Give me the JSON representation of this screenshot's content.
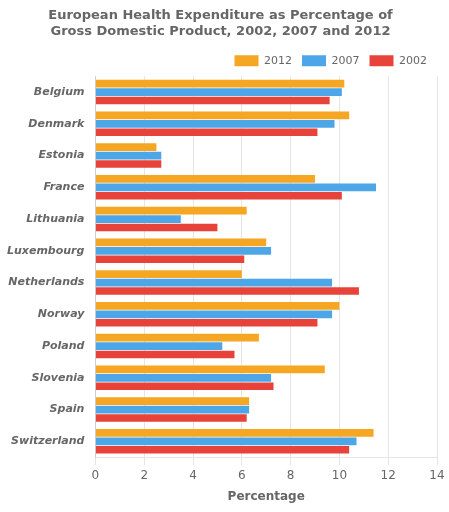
{
  "chart_data": {
    "type": "bar",
    "orientation": "horizontal",
    "title": "European Health Expenditure as Percentage of\nGross Domestic Product, 2002, 2007 and 2012",
    "categories": [
      "Belgium",
      "Denmark",
      "Estonia",
      "France",
      "Lithuania",
      "Luxembourg",
      "Netherlands",
      "Norway",
      "Poland",
      "Slovenia",
      "Spain",
      "Switzerland"
    ],
    "series": [
      {
        "name": "2012",
        "color": "#F5A623",
        "values": [
          10.2,
          10.4,
          2.5,
          9.0,
          6.2,
          7.0,
          6.0,
          10.0,
          6.7,
          9.4,
          6.3,
          11.4
        ]
      },
      {
        "name": "2007",
        "color": "#4DA6E8",
        "values": [
          10.1,
          9.8,
          2.7,
          11.5,
          3.5,
          7.2,
          9.7,
          9.7,
          5.2,
          7.2,
          6.3,
          10.7
        ]
      },
      {
        "name": "2002",
        "color": "#E8433A",
        "values": [
          9.6,
          9.1,
          2.7,
          10.1,
          5.0,
          6.1,
          10.8,
          9.1,
          5.7,
          7.3,
          6.2,
          10.4
        ]
      }
    ],
    "xlabel": "Percentage",
    "xlim": [
      0,
      14
    ],
    "xticks": [
      0,
      2,
      4,
      6,
      8,
      10,
      12,
      14
    ],
    "grid": true,
    "legend": "upper right"
  }
}
